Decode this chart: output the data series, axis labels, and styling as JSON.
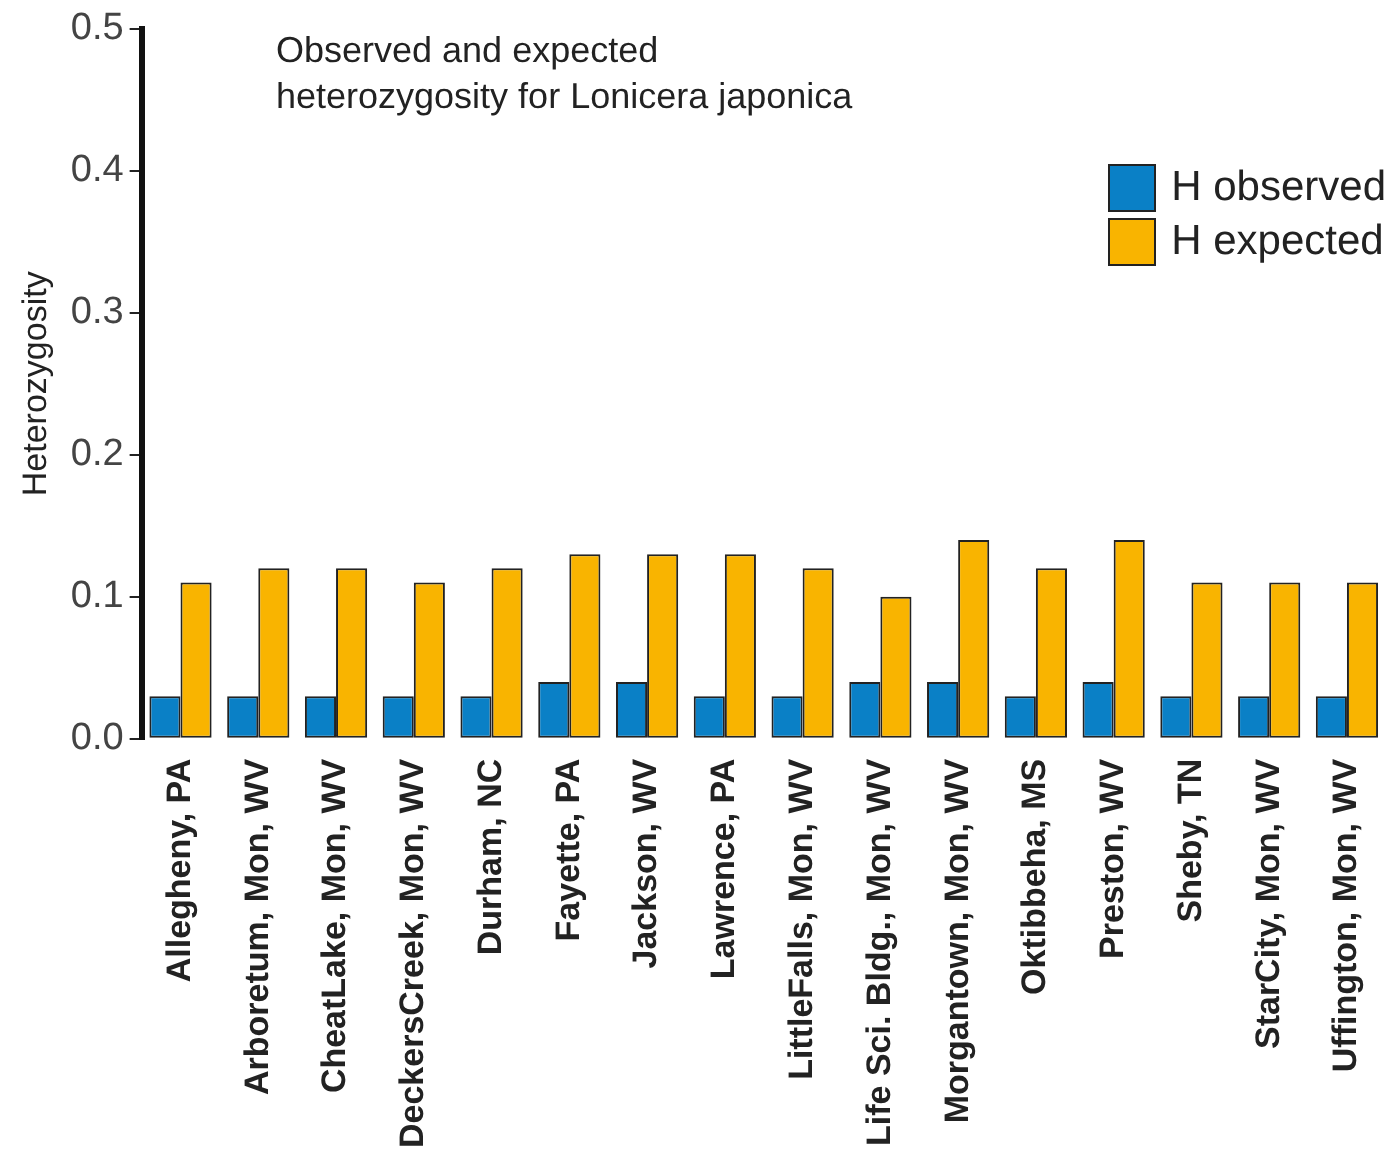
{
  "chart_data": {
    "type": "bar",
    "title": "Observed and expected heterozygosity for Lonicera japonica",
    "ylabel": "Heterozygosity",
    "categories": [
      "Allegheny, PA",
      "Arboretum, Mon, WV",
      "CheatLake, Mon, WV",
      "DeckersCreek, Mon, WV",
      "Durham, NC",
      "Fayette, PA",
      "Jackson, WV",
      "Lawrence, PA",
      "LittleFalls, Mon, WV",
      "Life Sci. Bldg., Mon, WV",
      "Morgantown, Mon, WV",
      "Oktibbeha, MS",
      "Preston, WV",
      "Sheby, TN",
      "StarCity, Mon, WV",
      "Uffington, Mon, WV"
    ],
    "series": [
      {
        "name": "H observed",
        "color": "#0a80c6",
        "values": [
          0.03,
          0.03,
          0.03,
          0.03,
          0.03,
          0.04,
          0.04,
          0.03,
          0.03,
          0.04,
          0.04,
          0.03,
          0.04,
          0.03,
          0.03,
          0.03
        ]
      },
      {
        "name": "H expected",
        "color": "#f9b400",
        "values": [
          0.11,
          0.12,
          0.12,
          0.11,
          0.12,
          0.13,
          0.13,
          0.13,
          0.12,
          0.1,
          0.14,
          0.12,
          0.14,
          0.11,
          0.11,
          0.11
        ]
      }
    ],
    "ylim": [
      0,
      0.5
    ],
    "yticks": [
      {
        "value": 0,
        "label": "0.0"
      },
      {
        "value": 0.1,
        "label": "0.1"
      },
      {
        "value": 0.2,
        "label": "0.2"
      },
      {
        "value": 0.3,
        "label": "0.3"
      },
      {
        "value": 0.4,
        "label": "0.4"
      },
      {
        "value": 0.5,
        "label": "0.5"
      }
    ],
    "grid": false,
    "legend": "top right"
  }
}
